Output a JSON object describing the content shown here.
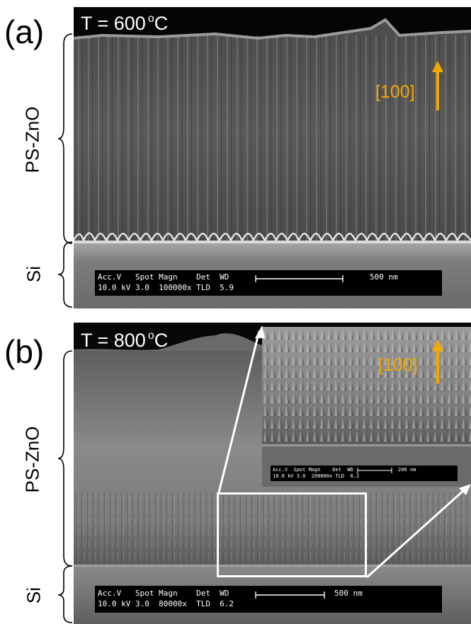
{
  "panels": [
    {
      "label": "(a)",
      "temperature": "T = 600",
      "temp_unit_sup": "o",
      "temp_unit": "C",
      "region_top": "PS-ZnO",
      "region_bottom": "Si",
      "direction": "[100]",
      "databar": {
        "header": "Acc.V   Spot Magn    Det  WD",
        "values": "10.0 kV 3.0  100000x TLD  5.9",
        "scale": "500 nm"
      }
    },
    {
      "label": "(b)",
      "temperature": "T = 800",
      "temp_unit_sup": "o",
      "temp_unit": "C",
      "region_top": "PS-ZnO",
      "region_bottom": "Si",
      "databar": {
        "header": "Acc.V   Spot Magn    Det  WD",
        "values": "10.0 kV 3.0  80000x  TLD  6.2",
        "scale": "500 nm"
      },
      "inset": {
        "direction": "[100]",
        "databar": {
          "header": "Acc.V  Spot Magn    Det  WD",
          "values": "10.0 kV 3.0  200000x TLD  6.2",
          "scale": "200 nm"
        }
      }
    }
  ],
  "colors": {
    "direction_arrow": "#f2a900",
    "zoom_box": "#ffffff"
  }
}
